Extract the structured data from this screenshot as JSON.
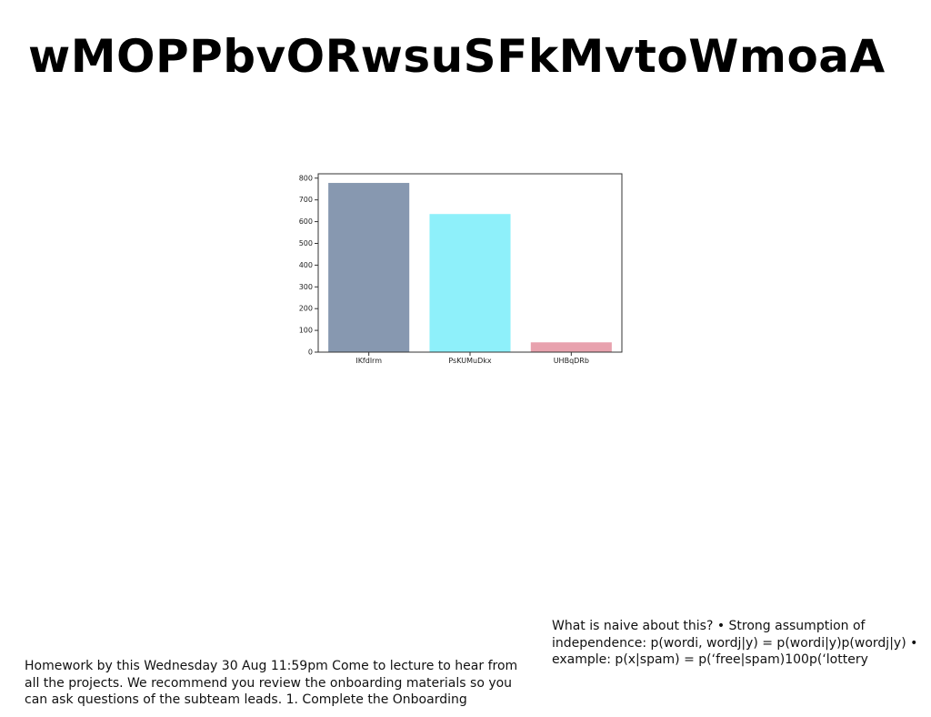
{
  "slide": {
    "title": "wMOPPbvORwsuSFkMvtoWmoaA",
    "note_right": "What is naive about this? • Strong assumption of independence: p(wordi, wordj|y) = p(wordi|y)p(wordj|y) • example: p(x|spam) = p(‘free\u0012|spam)100p(‘lottery",
    "note_left": "Homework by this Wednesday 30 Aug 11:59pm Come to lecture to hear from all the projects. We recommend you review the onboarding materials so you can ask questions of the subteam leads. 1. Complete the Onboarding"
  },
  "chart_data": {
    "type": "bar",
    "title": "",
    "xlabel": "",
    "ylabel": "",
    "categories": [
      "IKfdlrm",
      "PsKUMuDkx",
      "UHBqDRb"
    ],
    "values": [
      778,
      635,
      45
    ],
    "colors": [
      "#8798b0",
      "#8ef0fa",
      "#e8a2ae"
    ],
    "ylim": [
      0,
      820
    ],
    "yticks": [
      0,
      100,
      200,
      300,
      400,
      500,
      600,
      700,
      800
    ],
    "grid": false,
    "legend": "none"
  }
}
